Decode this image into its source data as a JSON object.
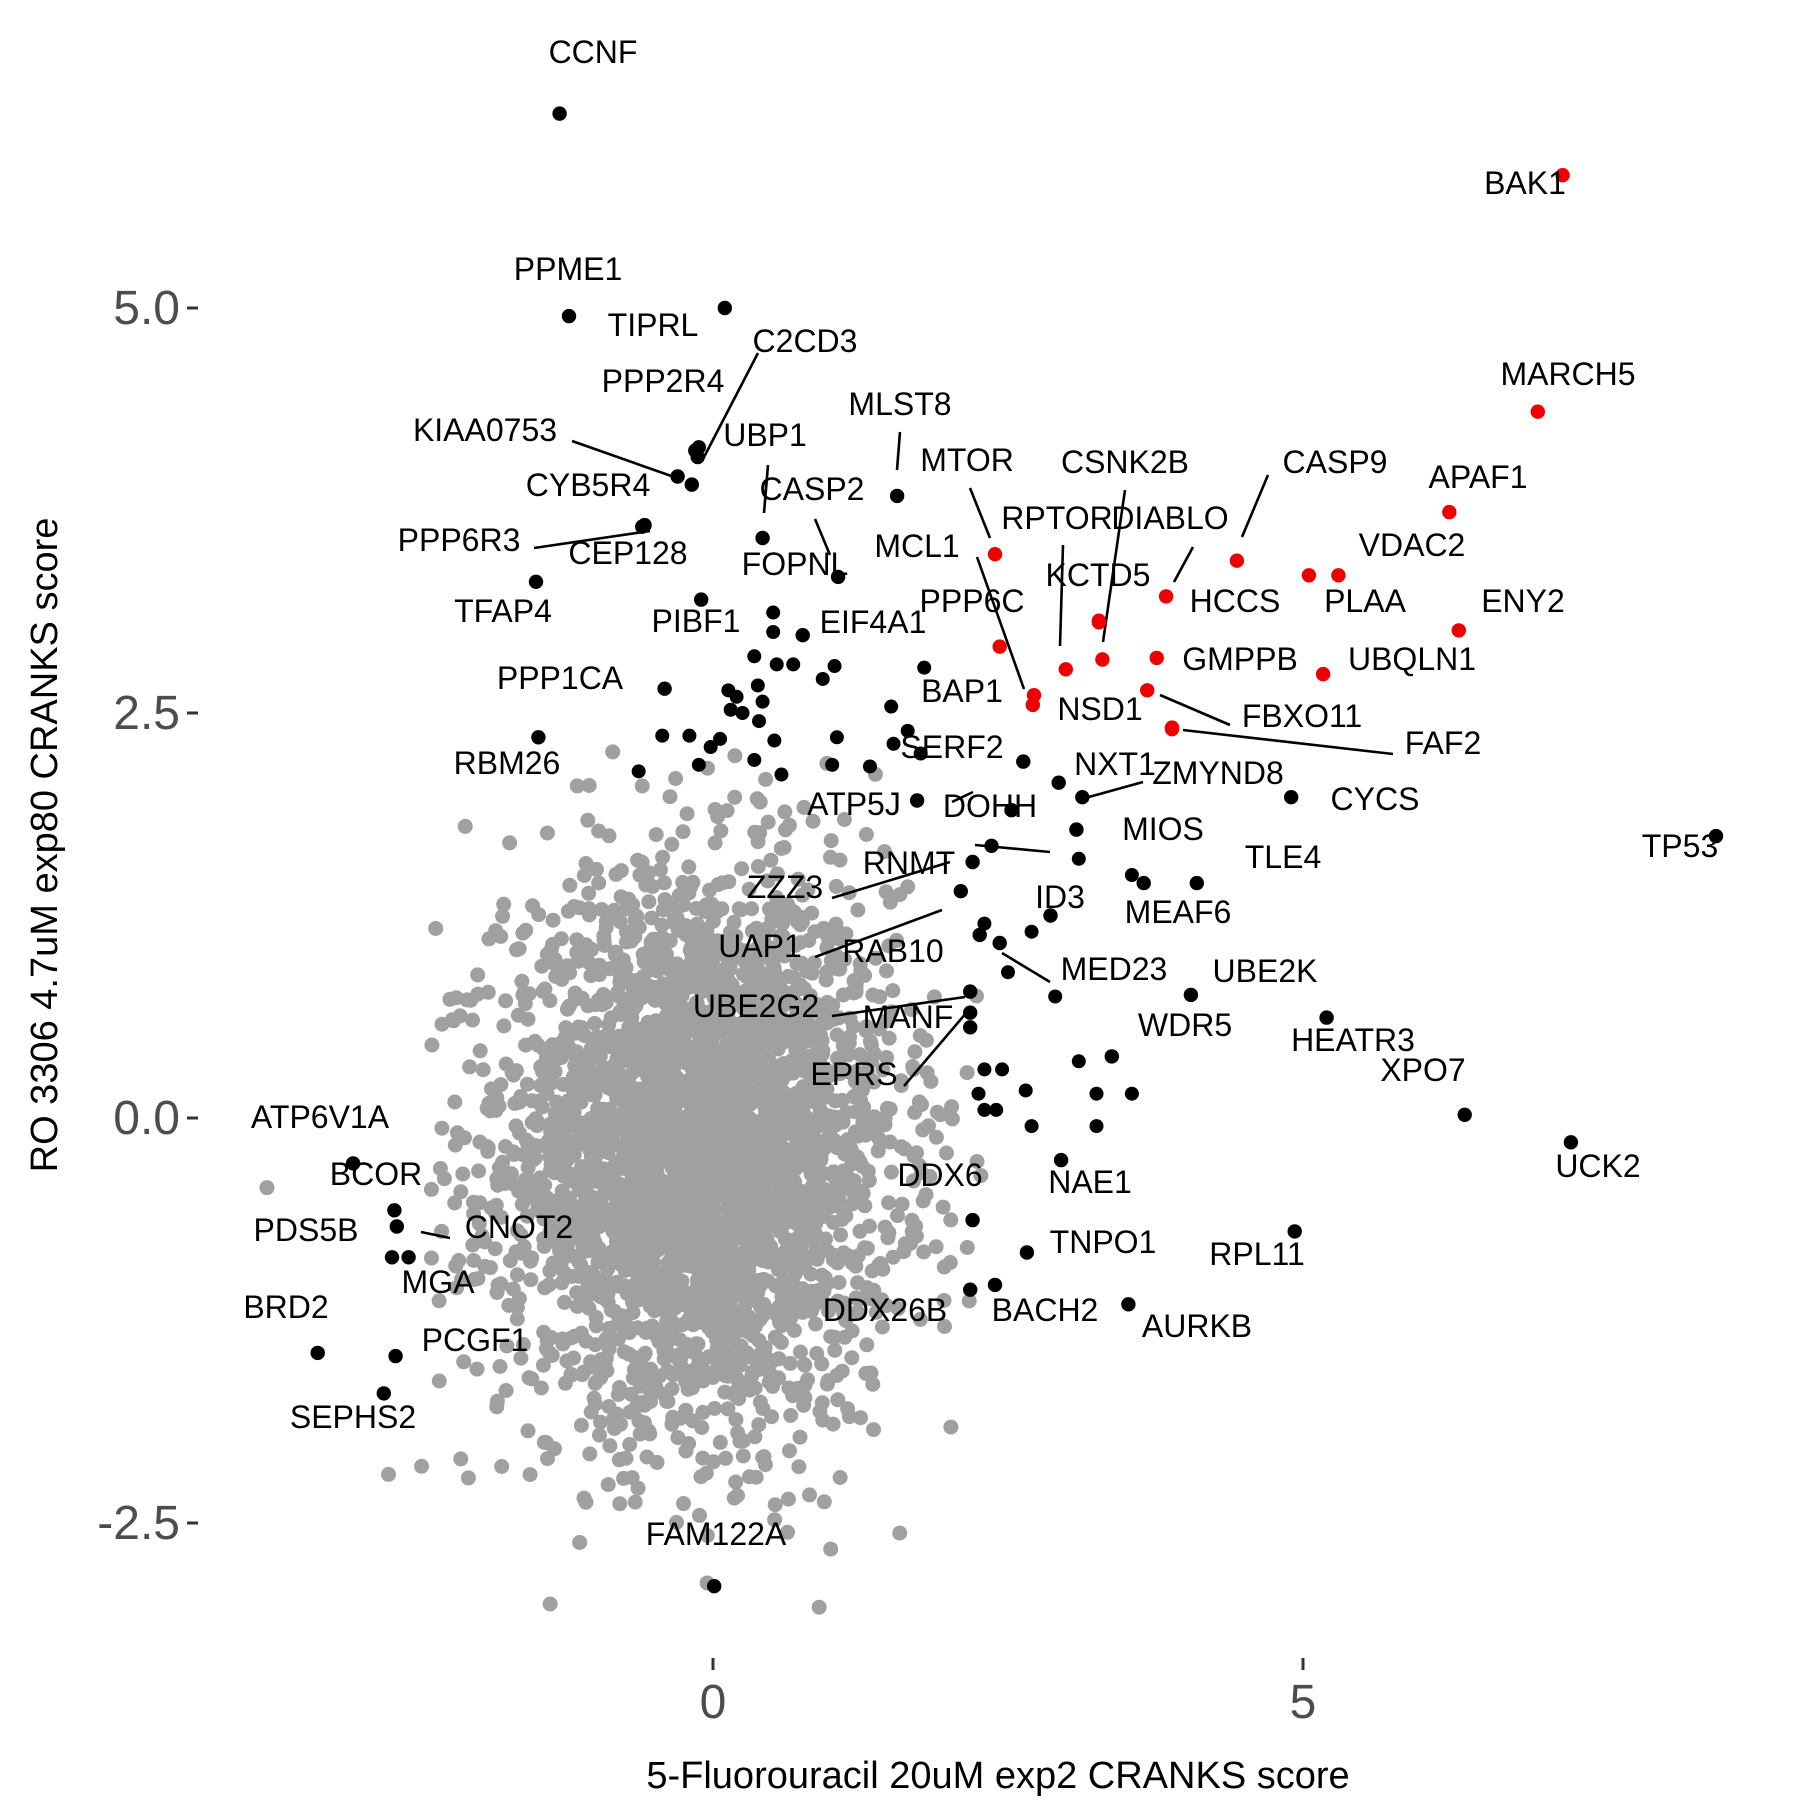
{
  "chart_data": {
    "type": "scatter",
    "title": "",
    "xlabel": "5-Fluorouracil 20uM exp2 CRANKS score",
    "ylabel": "RO 3306 4.7uM exp80 CRANKS score",
    "xlim": [
      -4.3,
      8.65
    ],
    "ylim": [
      -3.35,
      6.65
    ],
    "x_ticks": [
      0,
      5
    ],
    "y_ticks": [
      -2.5,
      0.0,
      2.5,
      5.0
    ],
    "x_tick_labels": [
      "0",
      "5"
    ],
    "y_tick_labels": [
      "-2.5",
      "0.0",
      "2.5",
      "5.0"
    ],
    "grid": false,
    "legend": "none",
    "colors": {
      "background_points": "#a0a0a0",
      "hit_points": "#000000",
      "highlight_points": "#ee0000",
      "tick_text": "#4d4d4d",
      "axis_title": "#000000"
    },
    "background_cloud": {
      "description_series": "background",
      "center": [
        -0.12,
        -0.2
      ],
      "sd": [
        0.82,
        0.82
      ],
      "count": 3500
    },
    "background_outliers": [
      {
        "x": -2.1,
        "y": 1.8
      },
      {
        "x": -2.35,
        "y": 1.17
      },
      {
        "x": -3.78,
        "y": -0.43
      },
      {
        "x": -1.38,
        "y": -3.0
      },
      {
        "x": -1.13,
        "y": -2.62
      },
      {
        "x": 0.9,
        "y": -3.02
      },
      {
        "x": -2.47,
        "y": -2.15
      },
      {
        "x": -2.75,
        "y": -2.2
      },
      {
        "x": -0.25,
        "y": -2.38
      },
      {
        "x": -0.05,
        "y": -2.87
      },
      {
        "x": -2.0,
        "y": -1.55
      },
      {
        "x": 1.25,
        "y": -1.85
      },
      {
        "x": -2.3,
        "y": -0.7
      },
      {
        "x": 1.95,
        "y": -0.55
      },
      {
        "x": 1.7,
        "y": 0.3
      },
      {
        "x": -2.2,
        "y": 0.6
      },
      {
        "x": -0.6,
        "y": 2.05
      },
      {
        "x": 0.4,
        "y": 1.95
      },
      {
        "x": 1.3,
        "y": 1.75
      },
      {
        "x": -1.15,
        "y": 2.05
      }
    ],
    "labeled_points": [
      {
        "label": "CCNF",
        "x": -1.3,
        "y": 6.2,
        "group": "hit"
      },
      {
        "label": "BAK1",
        "x": 7.2,
        "y": 5.82,
        "group": "highlight"
      },
      {
        "label": "PPME1",
        "x": -1.22,
        "y": 4.95,
        "group": "hit"
      },
      {
        "label": "TIPRL",
        "x": 0.1,
        "y": 5.0,
        "group": "hit"
      },
      {
        "label": "MARCH5",
        "x": 6.99,
        "y": 4.36,
        "group": "highlight"
      },
      {
        "label": "UBP1",
        "x": -0.13,
        "y": 4.08,
        "group": "hit"
      },
      {
        "label": "PPP2R4",
        "x": -0.15,
        "y": 4.12,
        "group": "hit"
      },
      {
        "label": "C2CD3",
        "x": -0.12,
        "y": 4.14,
        "group": "hit"
      },
      {
        "label": "KIAA0753",
        "x": -0.3,
        "y": 3.96,
        "group": "hit"
      },
      {
        "label": "CYB5R4",
        "x": -0.18,
        "y": 3.91,
        "group": "hit"
      },
      {
        "label": "MLST8",
        "x": 1.56,
        "y": 3.84,
        "group": "hit"
      },
      {
        "label": "CASP2",
        "x": 1.06,
        "y": 3.34,
        "group": "hit"
      },
      {
        "label": "APAF1",
        "x": 6.24,
        "y": 3.74,
        "group": "highlight"
      },
      {
        "label": "CEP128",
        "x": -0.6,
        "y": 3.65,
        "group": "hit"
      },
      {
        "label": "PPP6R3",
        "x": -0.58,
        "y": 3.66,
        "group": "hit"
      },
      {
        "label": "FOPNL",
        "x": 0.42,
        "y": 3.58,
        "group": "hit"
      },
      {
        "label": "MTOR",
        "x": 2.39,
        "y": 3.48,
        "group": "highlight"
      },
      {
        "label": "CASP9",
        "x": 4.44,
        "y": 3.44,
        "group": "highlight"
      },
      {
        "label": "VDAC2",
        "x": 5.05,
        "y": 3.35,
        "group": "highlight"
      },
      {
        "label": "PLAA",
        "x": 5.3,
        "y": 3.35,
        "group": "highlight"
      },
      {
        "label": "TFAP4",
        "x": -1.5,
        "y": 3.31,
        "group": "hit"
      },
      {
        "label": "HCCS",
        "x": 3.84,
        "y": 3.22,
        "group": "highlight"
      },
      {
        "label": "PIBF1",
        "x": -0.1,
        "y": 3.2,
        "group": "hit"
      },
      {
        "label": "ENY2",
        "x": 6.32,
        "y": 3.01,
        "group": "highlight"
      },
      {
        "label": "CSNK2B",
        "x": 3.27,
        "y": 3.06,
        "group": "highlight"
      },
      {
        "label": "KCTD5",
        "x": 3.27,
        "y": 3.07,
        "group": "highlight"
      },
      {
        "label": "EIF4A1",
        "x": 0.76,
        "y": 2.98,
        "group": "hit"
      },
      {
        "label": "PPP6C",
        "x": 2.43,
        "y": 2.91,
        "group": "highlight"
      },
      {
        "label": "RPTOR",
        "x": 3.3,
        "y": 2.83,
        "group": "highlight"
      },
      {
        "label": "DIABLO",
        "x": 3.76,
        "y": 2.84,
        "group": "highlight"
      },
      {
        "label": "UBQLN1",
        "x": 5.17,
        "y": 2.74,
        "group": "highlight"
      },
      {
        "label": "MCL1",
        "x": 2.99,
        "y": 2.77,
        "group": "highlight"
      },
      {
        "label": "GMPPB",
        "x": 3.68,
        "y": 2.64,
        "group": "highlight"
      },
      {
        "label": "BAP1",
        "x": 2.72,
        "y": 2.61,
        "group": "highlight"
      },
      {
        "label": "NSD1",
        "x": 2.71,
        "y": 2.55,
        "group": "highlight"
      },
      {
        "label": "PPP1CA",
        "x": -0.41,
        "y": 2.65,
        "group": "hit"
      },
      {
        "label": "FBXO11",
        "x": 3.89,
        "y": 2.4,
        "group": "highlight"
      },
      {
        "label": "FAF2",
        "x": 3.89,
        "y": 2.41,
        "group": "highlight"
      },
      {
        "label": "RBM26",
        "x": -1.48,
        "y": 2.35,
        "group": "hit"
      },
      {
        "label": "SERF2",
        "x": 2.63,
        "y": 2.2,
        "group": "hit"
      },
      {
        "label": "NXT1",
        "x": 2.93,
        "y": 2.07,
        "group": "hit"
      },
      {
        "label": "ZMYND8",
        "x": 3.13,
        "y": 1.98,
        "group": "hit"
      },
      {
        "label": "CYCS",
        "x": 4.9,
        "y": 1.98,
        "group": "hit"
      },
      {
        "label": "TP53",
        "x": 8.5,
        "y": 1.74,
        "group": "hit"
      },
      {
        "label": "ATP5J",
        "x": 1.73,
        "y": 1.96,
        "group": "hit"
      },
      {
        "label": "DOHH",
        "x": 2.53,
        "y": 1.9,
        "group": "hit"
      },
      {
        "label": "MIOS",
        "x": 3.08,
        "y": 1.78,
        "group": "hit"
      },
      {
        "label": "TLE4",
        "x": 4.1,
        "y": 1.45,
        "group": "hit"
      },
      {
        "label": "RNMT",
        "x": 2.36,
        "y": 1.68,
        "group": "hit"
      },
      {
        "label": "ZZZ3",
        "x": 2.2,
        "y": 1.58,
        "group": "hit"
      },
      {
        "label": "MEAF6",
        "x": 3.65,
        "y": 1.45,
        "group": "hit"
      },
      {
        "label": "ID3",
        "x": 2.86,
        "y": 1.25,
        "group": "hit"
      },
      {
        "label": "UAP1",
        "x": 2.1,
        "y": 1.4,
        "group": "hit"
      },
      {
        "label": "RAB10",
        "x": 2.26,
        "y": 1.13,
        "group": "hit"
      },
      {
        "label": "MED23",
        "x": 2.43,
        "y": 1.08,
        "group": "hit"
      },
      {
        "label": "UBE2K",
        "x": 4.05,
        "y": 0.76,
        "group": "hit"
      },
      {
        "label": "UBE2G2",
        "x": 2.18,
        "y": 0.78,
        "group": "hit"
      },
      {
        "label": "HEATR3",
        "x": 5.2,
        "y": 0.62,
        "group": "hit"
      },
      {
        "label": "MANF",
        "x": 2.18,
        "y": 0.65,
        "group": "hit"
      },
      {
        "label": "WDR5",
        "x": 3.38,
        "y": 0.38,
        "group": "hit"
      },
      {
        "label": "EPRS",
        "x": 2.18,
        "y": 0.56,
        "group": "hit"
      },
      {
        "label": "XPO7",
        "x": 6.37,
        "y": 0.02,
        "group": "hit"
      },
      {
        "label": "ATP6V1A",
        "x": -3.05,
        "y": -0.28,
        "group": "hit"
      },
      {
        "label": "UCK2",
        "x": 7.27,
        "y": -0.15,
        "group": "hit"
      },
      {
        "label": "NAE1",
        "x": 2.95,
        "y": -0.26,
        "group": "hit"
      },
      {
        "label": "BCOR",
        "x": -2.7,
        "y": -0.57,
        "group": "hit"
      },
      {
        "label": "DDX6",
        "x": 2.2,
        "y": -0.63,
        "group": "hit"
      },
      {
        "label": "CNOT2",
        "x": -2.68,
        "y": -0.67,
        "group": "hit"
      },
      {
        "label": "PDS5B",
        "x": -2.72,
        "y": -0.86,
        "group": "hit"
      },
      {
        "label": "RPL11",
        "x": 4.93,
        "y": -0.7,
        "group": "hit"
      },
      {
        "label": "TNPO1",
        "x": 2.66,
        "y": -0.83,
        "group": "hit"
      },
      {
        "label": "MGA",
        "x": -2.58,
        "y": -0.86,
        "group": "hit"
      },
      {
        "label": "DDX26B",
        "x": 2.18,
        "y": -1.06,
        "group": "hit"
      },
      {
        "label": "BACH2",
        "x": 2.39,
        "y": -1.03,
        "group": "hit"
      },
      {
        "label": "AURKB",
        "x": 3.52,
        "y": -1.15,
        "group": "hit"
      },
      {
        "label": "BRD2",
        "x": -3.35,
        "y": -1.45,
        "group": "hit"
      },
      {
        "label": "PCGF1",
        "x": -2.69,
        "y": -1.47,
        "group": "hit"
      },
      {
        "label": "SEPHS2",
        "x": -2.79,
        "y": -1.7,
        "group": "hit"
      },
      {
        "label": "FAM122A",
        "x": 0.01,
        "y": -2.89,
        "group": "hit"
      }
    ],
    "unlabeled_hits": [
      {
        "x": 0.51,
        "y": 3.12
      },
      {
        "x": 0.51,
        "y": 3.0
      },
      {
        "x": 1.79,
        "y": 2.78
      },
      {
        "x": 1.03,
        "y": 2.79
      },
      {
        "x": 0.54,
        "y": 2.8
      },
      {
        "x": 0.35,
        "y": 2.85
      },
      {
        "x": 0.68,
        "y": 2.8
      },
      {
        "x": 0.93,
        "y": 2.71
      },
      {
        "x": 0.38,
        "y": 2.67
      },
      {
        "x": 0.13,
        "y": 2.64
      },
      {
        "x": 0.2,
        "y": 2.6
      },
      {
        "x": 0.42,
        "y": 2.57
      },
      {
        "x": 0.15,
        "y": 2.52
      },
      {
        "x": 0.25,
        "y": 2.5
      },
      {
        "x": 0.39,
        "y": 2.45
      },
      {
        "x": -0.43,
        "y": 2.36
      },
      {
        "x": -0.2,
        "y": 2.36
      },
      {
        "x": 0.06,
        "y": 2.34
      },
      {
        "x": 0.52,
        "y": 2.33
      },
      {
        "x": -0.02,
        "y": 2.29
      },
      {
        "x": 0.35,
        "y": 2.21
      },
      {
        "x": 1.33,
        "y": 2.17
      },
      {
        "x": -0.12,
        "y": 2.18
      },
      {
        "x": 1.01,
        "y": 2.18
      },
      {
        "x": 1.05,
        "y": 2.35
      },
      {
        "x": 1.53,
        "y": 2.31
      },
      {
        "x": 1.65,
        "y": 2.39
      },
      {
        "x": 1.51,
        "y": 2.54
      },
      {
        "x": 0.58,
        "y": 2.12
      },
      {
        "x": -0.63,
        "y": 2.14
      },
      {
        "x": 1.76,
        "y": 2.25
      },
      {
        "x": 3.1,
        "y": 1.6
      },
      {
        "x": 3.55,
        "y": 1.5
      },
      {
        "x": 2.3,
        "y": 1.2
      },
      {
        "x": 2.5,
        "y": 0.9
      },
      {
        "x": 2.7,
        "y": 1.15
      },
      {
        "x": 2.9,
        "y": 0.75
      },
      {
        "x": 2.3,
        "y": 0.3
      },
      {
        "x": 2.45,
        "y": 0.3
      },
      {
        "x": 3.1,
        "y": 0.35
      },
      {
        "x": 3.55,
        "y": 0.15
      },
      {
        "x": 3.25,
        "y": 0.15
      },
      {
        "x": 3.25,
        "y": -0.05
      },
      {
        "x": 2.7,
        "y": -0.05
      },
      {
        "x": 2.3,
        "y": 0.05
      },
      {
        "x": 2.25,
        "y": 0.15
      },
      {
        "x": 2.65,
        "y": 0.17
      },
      {
        "x": 2.4,
        "y": 0.05
      }
    ]
  }
}
